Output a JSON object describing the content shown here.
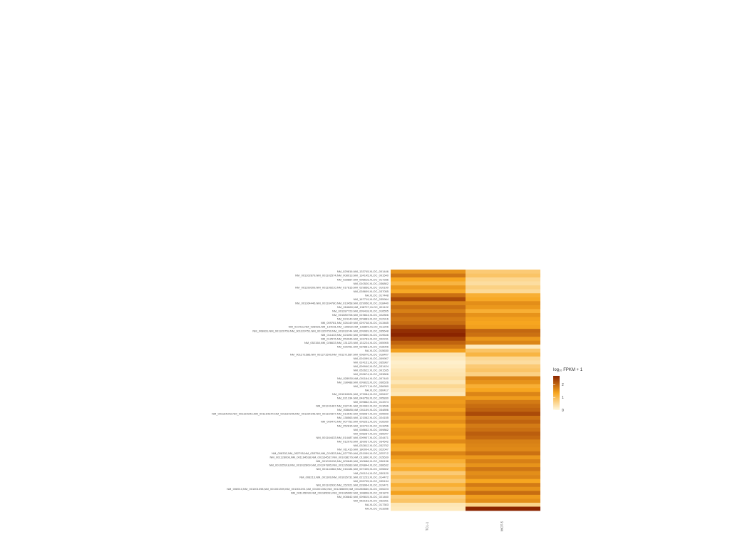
{
  "chart_data": {
    "type": "heatmap",
    "title": "",
    "columns": [
      "TCL-1",
      "WOT-5"
    ],
    "rows": [
      "NM_029816,NM_133745,XLOC_001446",
      "NM_001102879,NM_001102574,NM_008913,NM_134145,XLOC_001540",
      "NM_028887,NM_008515,XLOC_017286",
      "NM_010520,XLOC_036802",
      "NM_001199209,NM_001199210,NM_017815,NM_029856,XLOC_010190",
      "NM_028609,XLOC_037055",
      "NA,XLOC_017448",
      "NM_167719,XLOC_035964",
      "NM_001164446,NM_001164780,NM_013458,NM_029956,XLOC_018440",
      "NM_016860,NM_138797,XLOC_001122",
      "NM_001287723,NM_009418,XLOC_016555",
      "NM_001080708,NM_019844,XLOC_022806",
      "NM_024140,NM_029883,XLOC_012916",
      "NM_009781,NM_026149,NM_029748,XLOC_013465",
      "NM_010411,NM_028993,NM_134031,NM_130892,NM_133859,XLOC_011206",
      "NM_008831,NM_001329759,NM_001329751,NM_001329750,NM_001033744,NM_009969,XLOC_035648",
      "NM_011433,NM_024492,NM_009850,XLOC_019646",
      "NM_012576,NM_053046,NM_133783,XLOC_002231",
      "NM_052158,NM_026633,NM_131223,NM_131224,XLOC_005905",
      "NM_026451,NM_034881,XLOC_018006",
      "NA,XLOC_015630",
      "NM_001271586,NM_001271590,NM_001271587,NM_008970,XLOC_018407",
      "NM_001099,XLOC_009907",
      "NM_024151,XLOC_035967",
      "NM_009940,XLOC_031424",
      "NM_052622,XLOC_001535",
      "NM_009674,XLOC_033806",
      "NM_028930,NM_001164,XLOC_007440",
      "NM_198488,NM_009815,XLOC_036526",
      "NM_139717,XLOC_036950",
      "NA,XLOC_030417",
      "NM_001018024,NM_179084,XLOC_005437",
      "NM_021334,NM_048758,XLOC_005830",
      "NM_009862,XLOC_013374",
      "NM_001241467,NM_032741,NM_024992,XLOC_013696",
      "NM_008685,NM_001159,XLOC_034896",
      "NM_001164342,NM_001164343,NM_001164344,NM_001164345,NM_001164346,NM_001164347,NM_013542,NM_008087,XLOC_025599",
      "NM_138563,NM_121062,XLOC_024155",
      "NM_009470,NM_007752,NM_009251,XLOC_016930",
      "NM_252815,NM_133742,XLOC_013256",
      "NM_008652,XLOC_009862",
      "NM_008287,XLOC_035947",
      "NM_001164433,NM_014487,NM_009907,XLOC_024471",
      "NM_012073,NM_169937,XLOC_034542",
      "NM_032812,XLOC_032752",
      "NM_011415,NM_180004,XLOC_022047",
      "NM_008332,NM_052795,NM_053758,NM_024333,NM_027750,NM_031059,XLOC_025712",
      "NM_001128008,NM_001164538,NM_001164537,NM_001038276,NM_011860,XLOC_015639",
      "NM_001031036,NM_009845,NM_190688,XLOC_036136",
      "NM_001025918,NM_001032809,NM_001247805,NM_001195383,NM_009844,XLOC_036632",
      "NM_001144382,NM_016184,NM_007405,XLOC_025602",
      "NM_001124,XLOC_030120",
      "NM_008213,NM_001309,NM_001035731,NM_021233,XLOC_014472",
      "NM_009705,XLOC_035134",
      "NM_001102930,NM_152021,NM_028964,XLOC_019471",
      "NM_008910,NM_001001398,NM_001001399,NM_001001391,NM_001001392,NM_001285659,NM_001285660,XLOC_005223",
      "NM_001195090,NM_001185061,NM_001185062,NM_198898,XLOC_031870",
      "NM_008842,NM_009815,XLOC_021460",
      "NM_052153,XLOC_032261",
      "NA,XLOC_017303",
      "NA,XLOC_013286"
    ],
    "values": [
      [
        1.55,
        0.75
      ],
      [
        1.85,
        0.85
      ],
      [
        1.35,
        0.55
      ],
      [
        1.1,
        0.45
      ],
      [
        1.5,
        0.65
      ],
      [
        1.3,
        0.5
      ],
      [
        1.9,
        1.2
      ],
      [
        2.3,
        1.3
      ],
      [
        1.7,
        1.6
      ],
      [
        1.95,
        1.5
      ],
      [
        1.75,
        1.2
      ],
      [
        2.0,
        1.55
      ],
      [
        1.85,
        1.4
      ],
      [
        1.95,
        1.35
      ],
      [
        2.25,
        1.4
      ],
      [
        2.6,
        2.0
      ],
      [
        2.7,
        1.9
      ],
      [
        2.4,
        1.5
      ],
      [
        2.05,
        1.7
      ],
      [
        1.8,
        0.25
      ],
      [
        1.4,
        0.85
      ],
      [
        0.35,
        1.1
      ],
      [
        0.25,
        0.55
      ],
      [
        0.15,
        0.45
      ],
      [
        0.2,
        0.75
      ],
      [
        0.3,
        0.85
      ],
      [
        0.35,
        0.65
      ],
      [
        0.45,
        1.7
      ],
      [
        0.3,
        1.55
      ],
      [
        0.55,
        1.2
      ],
      [
        0.4,
        1.35
      ],
      [
        0.3,
        1.7
      ],
      [
        1.5,
        1.45
      ],
      [
        1.45,
        1.8
      ],
      [
        1.55,
        1.95
      ],
      [
        1.4,
        2.05
      ],
      [
        1.65,
        2.3
      ],
      [
        1.45,
        1.9
      ],
      [
        1.6,
        2.05
      ],
      [
        1.35,
        1.8
      ],
      [
        1.5,
        1.9
      ],
      [
        1.55,
        2.1
      ],
      [
        1.4,
        2.0
      ],
      [
        1.65,
        1.75
      ],
      [
        1.3,
        1.7
      ],
      [
        1.25,
        1.65
      ],
      [
        1.7,
        1.9
      ],
      [
        1.45,
        1.5
      ],
      [
        1.2,
        1.75
      ],
      [
        1.0,
        1.55
      ],
      [
        1.25,
        1.85
      ],
      [
        0.75,
        1.6
      ],
      [
        1.05,
        1.7
      ],
      [
        0.8,
        1.35
      ],
      [
        1.2,
        1.8
      ],
      [
        0.95,
        1.55
      ],
      [
        1.4,
        1.95
      ],
      [
        0.7,
        1.45
      ],
      [
        0.85,
        1.6
      ],
      [
        0.3,
        0.6
      ],
      [
        0.25,
        2.7
      ]
    ],
    "legend": {
      "title": "log₁₀ FPKM + 1",
      "ticks": [
        2,
        1,
        0
      ],
      "placement": "right"
    },
    "colors": {
      "low": "#fff8e0",
      "mid": "#f7a61f",
      "high": "#8b2500"
    }
  }
}
